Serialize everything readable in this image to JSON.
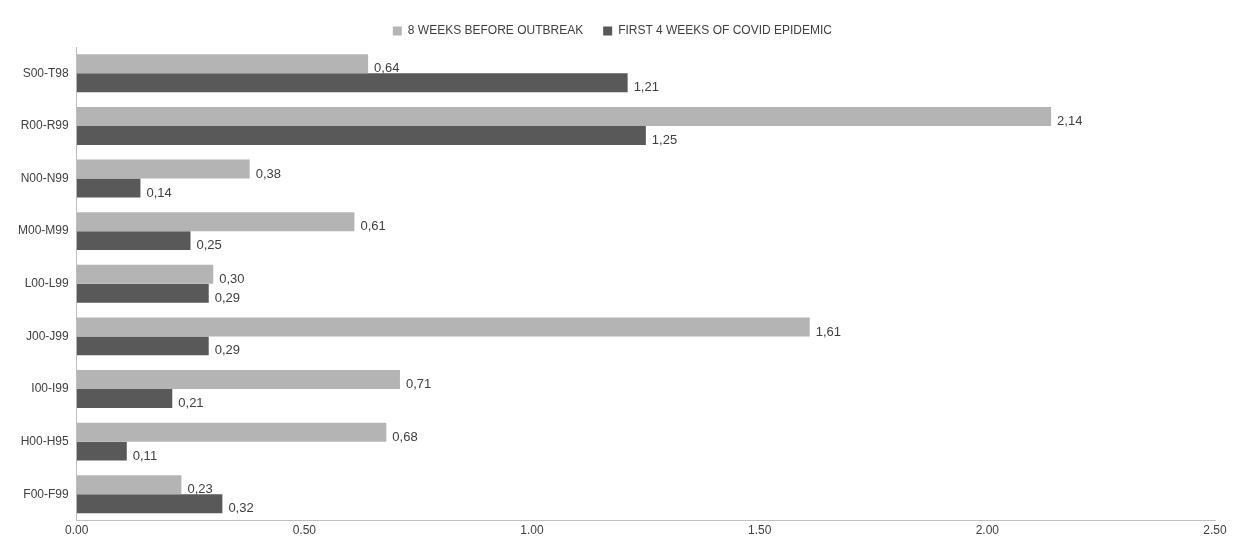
{
  "chart_data": {
    "type": "bar",
    "orientation": "horizontal",
    "legend": "top",
    "categories": [
      "S00-T98",
      "R00-R99",
      "N00-N99",
      "M00-M99",
      "L00-L99",
      "J00-J99",
      "I00-I99",
      "H00-H95",
      "F00-F99"
    ],
    "series": [
      {
        "name": "8 WEEKS BEFORE OUTBREAK",
        "color": "#b4b4b4",
        "values": [
          0.64,
          2.14,
          0.38,
          0.61,
          0.3,
          1.61,
          0.71,
          0.68,
          0.23
        ],
        "value_labels": [
          "0,64",
          "2,14",
          "0,38",
          "0,61",
          "0,30",
          "1,61",
          "0,71",
          "0,68",
          "0,23"
        ]
      },
      {
        "name": "FIRST 4 WEEKS OF COVID EPIDEMIC",
        "color": "#595959",
        "values": [
          1.21,
          1.25,
          0.14,
          0.25,
          0.29,
          0.29,
          0.21,
          0.11,
          0.32
        ],
        "value_labels": [
          "1,21",
          "1,25",
          "0,14",
          "0,25",
          "0,29",
          "0,29",
          "0,21",
          "0,11",
          "0,32"
        ]
      }
    ],
    "xlim": [
      0,
      2.5
    ],
    "xticks": [
      {
        "value": 0,
        "label": "0.00"
      },
      {
        "value": 0.5,
        "label": "0.50"
      },
      {
        "value": 1,
        "label": "1.00"
      },
      {
        "value": 1.5,
        "label": "1.50"
      },
      {
        "value": 2,
        "label": "2.00"
      },
      {
        "value": 2.5,
        "label": "2.50"
      }
    ],
    "grid": false
  }
}
